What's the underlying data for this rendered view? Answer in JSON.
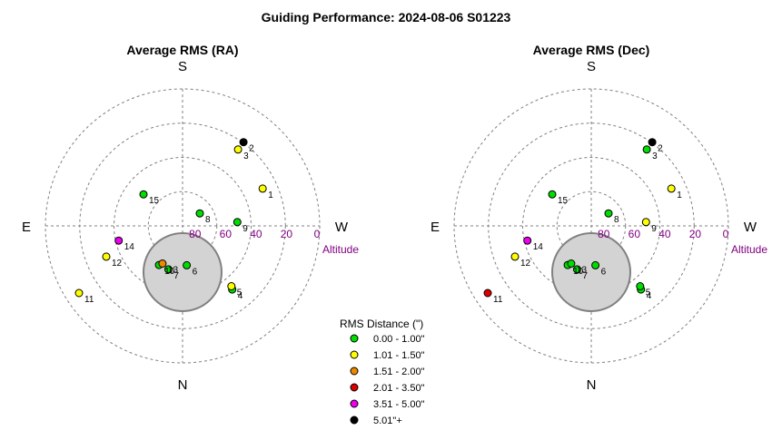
{
  "title": "Guiding Performance: 2024-08-06 S01223",
  "directions": {
    "north": "N",
    "south": "S",
    "east": "E",
    "west": "W"
  },
  "altitude_label": "Altitude",
  "altitude_ticks": [
    "0",
    "20",
    "40",
    "60",
    "80"
  ],
  "legend": {
    "title": "RMS Distance (\")",
    "items": [
      {
        "label": "0.00 - 1.00\"",
        "color": "#00dd00"
      },
      {
        "label": "1.01 - 1.50\"",
        "color": "#ffff00"
      },
      {
        "label": "1.51 - 2.00\"",
        "color": "#ee8800"
      },
      {
        "label": "2.01 - 3.50\"",
        "color": "#dd0000"
      },
      {
        "label": "3.51 - 5.00\"",
        "color": "#ee00ee"
      },
      {
        "label": "5.01\"+",
        "color": "#000000"
      }
    ]
  },
  "chart_data": [
    {
      "type": "scatter",
      "title": "Average RMS (RA)",
      "projection": "polar-sky (azimuth, altitude; N bottom, S top, E left, W right; 90 at center, 0 at edge)",
      "axis_range_altitude": [
        0,
        90
      ],
      "points": [
        {
          "label": "1",
          "azimuth": 245,
          "altitude": 32,
          "color": "#ffff00"
        },
        {
          "label": "2",
          "azimuth": 216,
          "altitude": 22,
          "color": "#000000"
        },
        {
          "label": "3",
          "azimuth": 216,
          "altitude": 28,
          "color": "#ffff00"
        },
        {
          "label": "4",
          "azimuth": 322,
          "altitude": 37,
          "color": "#00dd00"
        },
        {
          "label": "5",
          "azimuth": 321,
          "altitude": 39,
          "color": "#ffff00"
        },
        {
          "label": "6",
          "azimuth": 354,
          "altitude": 64,
          "color": "#00dd00"
        },
        {
          "label": "7",
          "azimuth": 18,
          "altitude": 60,
          "color": "#00dd00"
        },
        {
          "label": "8",
          "azimuth": 234,
          "altitude": 76,
          "color": "#00dd00"
        },
        {
          "label": "9",
          "azimuth": 266,
          "altitude": 54,
          "color": "#00dd00"
        },
        {
          "label": "10",
          "azimuth": 31,
          "altitude": 60,
          "color": "#00dd00"
        },
        {
          "label": "11",
          "azimuth": 57,
          "altitude": 9,
          "color": "#ffff00"
        },
        {
          "label": "12",
          "azimuth": 68,
          "altitude": 36,
          "color": "#ffff00"
        },
        {
          "label": "13",
          "azimuth": 28,
          "altitude": 62,
          "color": "#ee8800"
        },
        {
          "label": "14",
          "azimuth": 77,
          "altitude": 47,
          "color": "#ee00ee"
        },
        {
          "label": "15",
          "azimuth": 129,
          "altitude": 57,
          "color": "#00dd00"
        }
      ]
    },
    {
      "type": "scatter",
      "title": "Average RMS (Dec)",
      "projection": "polar-sky (azimuth, altitude; N bottom, S top, E left, W right; 90 at center, 0 at edge)",
      "axis_range_altitude": [
        0,
        90
      ],
      "points": [
        {
          "label": "1",
          "azimuth": 245,
          "altitude": 32,
          "color": "#ffff00"
        },
        {
          "label": "2",
          "azimuth": 216,
          "altitude": 22,
          "color": "#000000"
        },
        {
          "label": "3",
          "azimuth": 216,
          "altitude": 28,
          "color": "#00dd00"
        },
        {
          "label": "4",
          "azimuth": 322,
          "altitude": 37,
          "color": "#00dd00"
        },
        {
          "label": "5",
          "azimuth": 321,
          "altitude": 39,
          "color": "#00dd00"
        },
        {
          "label": "6",
          "azimuth": 354,
          "altitude": 64,
          "color": "#00dd00"
        },
        {
          "label": "7",
          "azimuth": 18,
          "altitude": 60,
          "color": "#00dd00"
        },
        {
          "label": "8",
          "azimuth": 234,
          "altitude": 76,
          "color": "#00dd00"
        },
        {
          "label": "9",
          "azimuth": 266,
          "altitude": 54,
          "color": "#ffff00"
        },
        {
          "label": "10",
          "azimuth": 31,
          "altitude": 60,
          "color": "#00dd00"
        },
        {
          "label": "11",
          "azimuth": 57,
          "altitude": 9,
          "color": "#dd0000"
        },
        {
          "label": "12",
          "azimuth": 68,
          "altitude": 36,
          "color": "#ffff00"
        },
        {
          "label": "13",
          "azimuth": 28,
          "altitude": 62,
          "color": "#00dd00"
        },
        {
          "label": "14",
          "azimuth": 77,
          "altitude": 47,
          "color": "#ee00ee"
        },
        {
          "label": "15",
          "azimuth": 129,
          "altitude": 57,
          "color": "#00dd00"
        }
      ]
    }
  ]
}
